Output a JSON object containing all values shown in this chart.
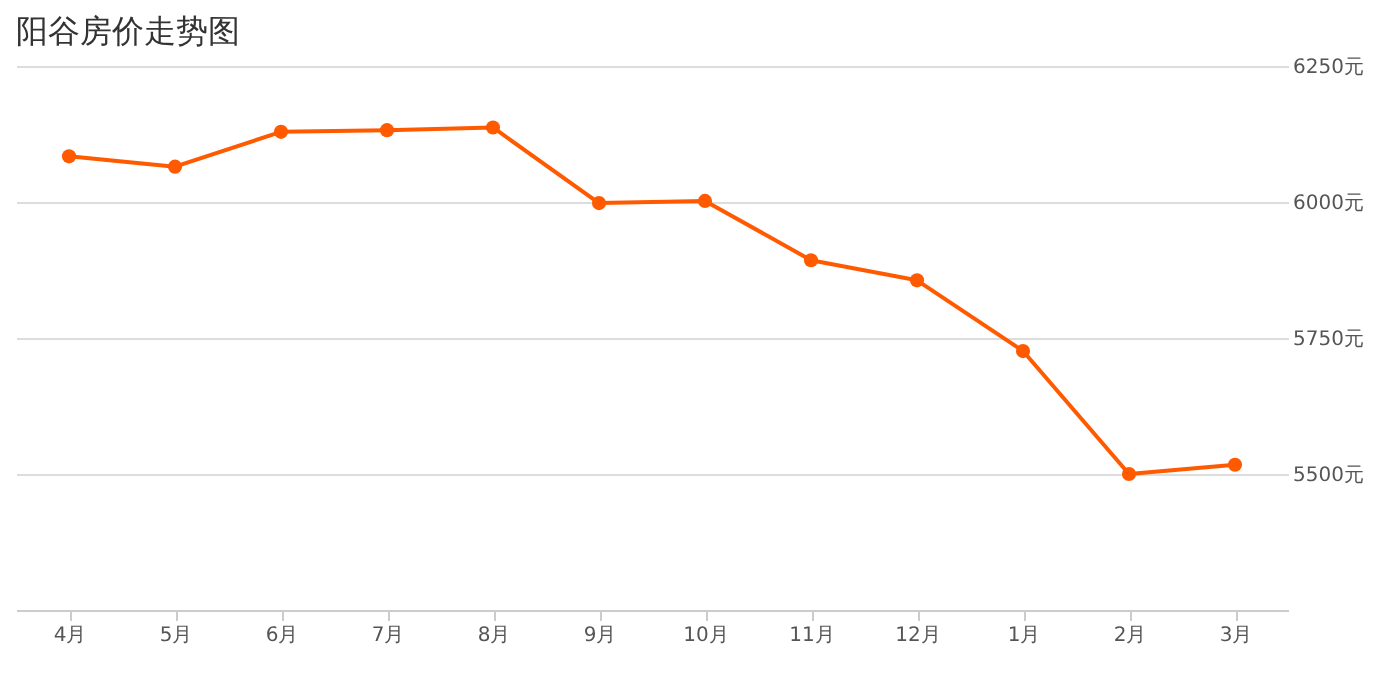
{
  "chart_data": {
    "type": "line",
    "title": "阳谷房价走势图",
    "categories": [
      "4月",
      "5月",
      "6月",
      "7月",
      "8月",
      "9月",
      "10月",
      "11月",
      "12月",
      "1月",
      "2月",
      "3月"
    ],
    "series": [
      {
        "color": "#ff5a00",
        "values": [
          6084,
          6065,
          6129,
          6132,
          6137,
          5998,
          6002,
          5893,
          5856,
          5726,
          5500,
          5517
        ]
      }
    ],
    "ylim": [
      5250,
      6250
    ],
    "yticks": [
      {
        "value": 5500,
        "label": "5500元"
      },
      {
        "value": 5750,
        "label": "5750元"
      },
      {
        "value": 6000,
        "label": "6000元"
      },
      {
        "value": 6250,
        "label": "6250元"
      }
    ],
    "grid": "y",
    "marker": "circle",
    "line_style": "solid"
  }
}
